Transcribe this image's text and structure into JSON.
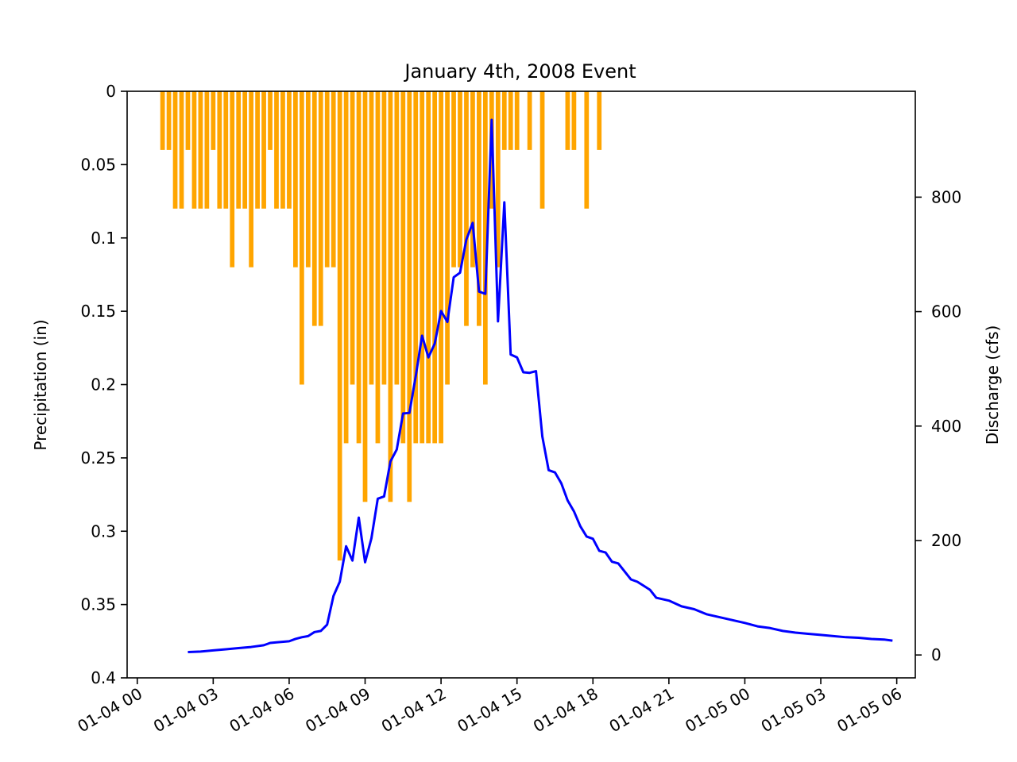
{
  "chart_data": {
    "type": "bar+line",
    "title": "January 4th, 2008 Event",
    "x_axis": {
      "type": "datetime",
      "range": [
        "2008-01-03T23:36",
        "2008-01-05T06:44"
      ],
      "tick_labels": [
        "01-04 00",
        "01-04 03",
        "01-04 06",
        "01-04 09",
        "01-04 12",
        "01-04 15",
        "01-04 18",
        "01-04 21",
        "01-05 00",
        "01-05 03",
        "01-05 06"
      ],
      "tick_values": [
        "2008-01-04T00:00",
        "2008-01-04T03:00",
        "2008-01-04T06:00",
        "2008-01-04T09:00",
        "2008-01-04T12:00",
        "2008-01-04T15:00",
        "2008-01-04T18:00",
        "2008-01-04T21:00",
        "2008-01-05T00:00",
        "2008-01-05T03:00",
        "2008-01-05T06:00"
      ]
    },
    "left_axis": {
      "label": "Precipitation (in)",
      "range": [
        0,
        0.4
      ],
      "inverted": true,
      "tick_labels": [
        "0",
        "0.05",
        "0.1",
        "0.15",
        "0.2",
        "0.25",
        "0.3",
        "0.35",
        "0.4"
      ],
      "tick_values": [
        0,
        0.05,
        0.1,
        0.15,
        0.2,
        0.25,
        0.3,
        0.35,
        0.4
      ]
    },
    "right_axis": {
      "label": "Discharge (cfs)",
      "range": [
        -40,
        985
      ],
      "tick_labels": [
        "0",
        "200",
        "400",
        "600",
        "800"
      ],
      "tick_values": [
        0,
        200,
        400,
        600,
        800
      ]
    },
    "grid": false,
    "precipitation": {
      "color": "#ffa500",
      "interval_minutes": 15,
      "times": [
        "2008-01-04T01:00",
        "2008-01-04T01:15",
        "2008-01-04T01:30",
        "2008-01-04T01:45",
        "2008-01-04T02:00",
        "2008-01-04T02:15",
        "2008-01-04T02:30",
        "2008-01-04T02:45",
        "2008-01-04T03:00",
        "2008-01-04T03:15",
        "2008-01-04T03:30",
        "2008-01-04T03:45",
        "2008-01-04T04:00",
        "2008-01-04T04:15",
        "2008-01-04T04:30",
        "2008-01-04T04:45",
        "2008-01-04T05:00",
        "2008-01-04T05:15",
        "2008-01-04T05:30",
        "2008-01-04T05:45",
        "2008-01-04T06:00",
        "2008-01-04T06:15",
        "2008-01-04T06:30",
        "2008-01-04T06:45",
        "2008-01-04T07:00",
        "2008-01-04T07:15",
        "2008-01-04T07:30",
        "2008-01-04T07:45",
        "2008-01-04T08:00",
        "2008-01-04T08:15",
        "2008-01-04T08:30",
        "2008-01-04T08:45",
        "2008-01-04T09:00",
        "2008-01-04T09:15",
        "2008-01-04T09:30",
        "2008-01-04T09:45",
        "2008-01-04T10:00",
        "2008-01-04T10:15",
        "2008-01-04T10:30",
        "2008-01-04T10:45",
        "2008-01-04T11:00",
        "2008-01-04T11:15",
        "2008-01-04T11:30",
        "2008-01-04T11:45",
        "2008-01-04T12:00",
        "2008-01-04T12:15",
        "2008-01-04T12:30",
        "2008-01-04T12:45",
        "2008-01-04T13:00",
        "2008-01-04T13:15",
        "2008-01-04T13:30",
        "2008-01-04T13:45",
        "2008-01-04T14:00",
        "2008-01-04T14:15",
        "2008-01-04T14:30",
        "2008-01-04T14:45",
        "2008-01-04T15:00",
        "2008-01-04T15:30",
        "2008-01-04T16:00",
        "2008-01-04T17:00",
        "2008-01-04T17:15",
        "2008-01-04T17:45",
        "2008-01-04T18:15"
      ],
      "values": [
        0.04,
        0.04,
        0.08,
        0.08,
        0.04,
        0.08,
        0.08,
        0.08,
        0.04,
        0.08,
        0.08,
        0.12,
        0.08,
        0.08,
        0.12,
        0.08,
        0.08,
        0.04,
        0.08,
        0.08,
        0.08,
        0.12,
        0.2,
        0.12,
        0.16,
        0.16,
        0.12,
        0.12,
        0.32,
        0.24,
        0.2,
        0.24,
        0.28,
        0.2,
        0.24,
        0.2,
        0.28,
        0.2,
        0.24,
        0.28,
        0.24,
        0.24,
        0.24,
        0.24,
        0.24,
        0.2,
        0.12,
        0.12,
        0.16,
        0.12,
        0.16,
        0.2,
        0.08,
        0.12,
        0.04,
        0.04,
        0.04,
        0.04,
        0.08,
        0.04,
        0.04,
        0.08,
        0.04
      ]
    },
    "discharge": {
      "color": "#0000ff",
      "times": [
        "2008-01-04T02:00",
        "2008-01-04T02:30",
        "2008-01-04T03:00",
        "2008-01-04T03:30",
        "2008-01-04T04:00",
        "2008-01-04T04:30",
        "2008-01-04T05:00",
        "2008-01-04T05:15",
        "2008-01-04T05:30",
        "2008-01-04T06:00",
        "2008-01-04T06:15",
        "2008-01-04T06:30",
        "2008-01-04T06:45",
        "2008-01-04T07:00",
        "2008-01-04T07:15",
        "2008-01-04T07:30",
        "2008-01-04T07:45",
        "2008-01-04T08:00",
        "2008-01-04T08:15",
        "2008-01-04T08:30",
        "2008-01-04T08:45",
        "2008-01-04T09:00",
        "2008-01-04T09:15",
        "2008-01-04T09:30",
        "2008-01-04T09:45",
        "2008-01-04T10:00",
        "2008-01-04T10:15",
        "2008-01-04T10:30",
        "2008-01-04T10:45",
        "2008-01-04T11:00",
        "2008-01-04T11:15",
        "2008-01-04T11:30",
        "2008-01-04T11:45",
        "2008-01-04T12:00",
        "2008-01-04T12:15",
        "2008-01-04T12:30",
        "2008-01-04T12:45",
        "2008-01-04T13:00",
        "2008-01-04T13:15",
        "2008-01-04T13:30",
        "2008-01-04T13:45",
        "2008-01-04T14:00",
        "2008-01-04T14:15",
        "2008-01-04T14:30",
        "2008-01-04T14:45",
        "2008-01-04T15:00",
        "2008-01-04T15:15",
        "2008-01-04T15:30",
        "2008-01-04T15:45",
        "2008-01-04T16:00",
        "2008-01-04T16:15",
        "2008-01-04T16:30",
        "2008-01-04T16:45",
        "2008-01-04T17:00",
        "2008-01-04T17:15",
        "2008-01-04T17:30",
        "2008-01-04T17:45",
        "2008-01-04T18:00",
        "2008-01-04T18:15",
        "2008-01-04T18:30",
        "2008-01-04T18:45",
        "2008-01-04T19:00",
        "2008-01-04T19:30",
        "2008-01-04T19:45",
        "2008-01-04T20:00",
        "2008-01-04T20:15",
        "2008-01-04T20:30",
        "2008-01-04T21:00",
        "2008-01-04T21:30",
        "2008-01-04T22:00",
        "2008-01-04T22:30",
        "2008-01-04T23:00",
        "2008-01-04T23:30",
        "2008-01-05T00:00",
        "2008-01-05T00:30",
        "2008-01-05T01:00",
        "2008-01-05T01:30",
        "2008-01-05T02:00",
        "2008-01-05T02:30",
        "2008-01-05T03:00",
        "2008-01-05T03:30",
        "2008-01-05T04:00",
        "2008-01-05T04:30",
        "2008-01-05T05:00",
        "2008-01-05T05:30",
        "2008-01-05T05:50"
      ],
      "values": [
        5,
        6,
        8,
        10,
        12,
        14,
        17,
        21,
        22,
        24,
        28,
        31,
        33,
        40,
        42,
        53,
        103,
        128,
        190,
        165,
        240,
        162,
        204,
        273,
        277,
        338,
        359,
        422,
        423,
        487,
        558,
        520,
        544,
        601,
        582,
        660,
        668,
        726,
        755,
        635,
        631,
        935,
        583,
        791,
        525,
        520,
        494,
        493,
        496,
        382,
        323,
        319,
        300,
        270,
        251,
        225,
        207,
        203,
        182,
        179,
        163,
        160,
        132,
        128,
        121,
        114,
        100,
        95,
        85,
        80,
        71,
        66,
        61,
        56,
        50,
        47,
        42,
        39,
        37,
        35,
        33,
        31,
        30,
        28,
        27,
        25
      ]
    }
  }
}
